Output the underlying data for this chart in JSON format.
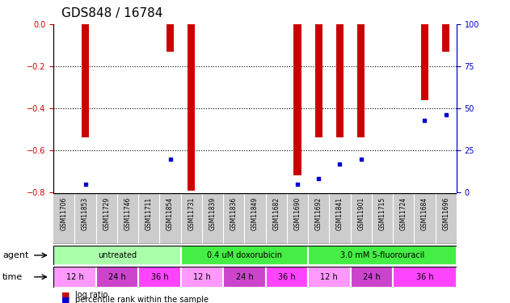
{
  "title": "GDS848 / 16784",
  "samples": [
    "GSM11706",
    "GSM11853",
    "GSM11729",
    "GSM11746",
    "GSM11711",
    "GSM11854",
    "GSM11731",
    "GSM11839",
    "GSM11836",
    "GSM11849",
    "GSM11682",
    "GSM11690",
    "GSM11692",
    "GSM11841",
    "GSM11901",
    "GSM11715",
    "GSM11724",
    "GSM11684",
    "GSM11696"
  ],
  "log_ratio": [
    0.0,
    -0.54,
    0.0,
    0.0,
    0.0,
    -0.13,
    -0.79,
    0.0,
    0.0,
    0.0,
    0.0,
    -0.72,
    -0.54,
    -0.54,
    -0.54,
    0.0,
    0.0,
    -0.36,
    -0.13
  ],
  "percentile_rank": [
    null,
    5,
    null,
    null,
    null,
    20,
    null,
    null,
    null,
    null,
    null,
    5,
    8,
    17,
    20,
    null,
    null,
    43,
    46
  ],
  "ylim_left": [
    -0.8,
    0.0
  ],
  "ylim_right": [
    0,
    100
  ],
  "yticks_left": [
    0.0,
    -0.2,
    -0.4,
    -0.6,
    -0.8
  ],
  "yticks_right": [
    0,
    25,
    50,
    75,
    100
  ],
  "bar_color": "#cc0000",
  "marker_color": "#0000cc",
  "agent_groups": [
    {
      "label": "untreated",
      "start": 0,
      "end": 6,
      "color": "#aaffaa"
    },
    {
      "label": "0.4 uM doxorubicin",
      "start": 6,
      "end": 12,
      "color": "#33dd33"
    },
    {
      "label": "3.0 mM 5-fluorouracil",
      "start": 12,
      "end": 19,
      "color": "#33dd33"
    }
  ],
  "time_groups": [
    {
      "label": "12 h",
      "start": 0,
      "end": 2,
      "color": "#ff99ff"
    },
    {
      "label": "24 h",
      "start": 2,
      "end": 4,
      "color": "#dd66dd"
    },
    {
      "label": "36 h",
      "start": 4,
      "end": 6,
      "color": "#ff44ff"
    },
    {
      "label": "12 h",
      "start": 6,
      "end": 8,
      "color": "#ff99ff"
    },
    {
      "label": "24 h",
      "start": 8,
      "end": 10,
      "color": "#dd66dd"
    },
    {
      "label": "36 h",
      "start": 10,
      "end": 12,
      "color": "#ff44ff"
    },
    {
      "label": "12 h",
      "start": 12,
      "end": 14,
      "color": "#ff99ff"
    },
    {
      "label": "24 h",
      "start": 14,
      "end": 16,
      "color": "#dd66dd"
    },
    {
      "label": "36 h",
      "start": 16,
      "end": 19,
      "color": "#ff44ff"
    }
  ],
  "left_axis_color": "#cc0000",
  "right_axis_color": "#0000cc",
  "sample_bg_color": "#cccccc",
  "plot_bg_color": "#ffffff",
  "grid_color": "#000000",
  "bar_width": 0.35,
  "label_fontsize": 7,
  "tick_fontsize": 7,
  "title_fontsize": 11
}
